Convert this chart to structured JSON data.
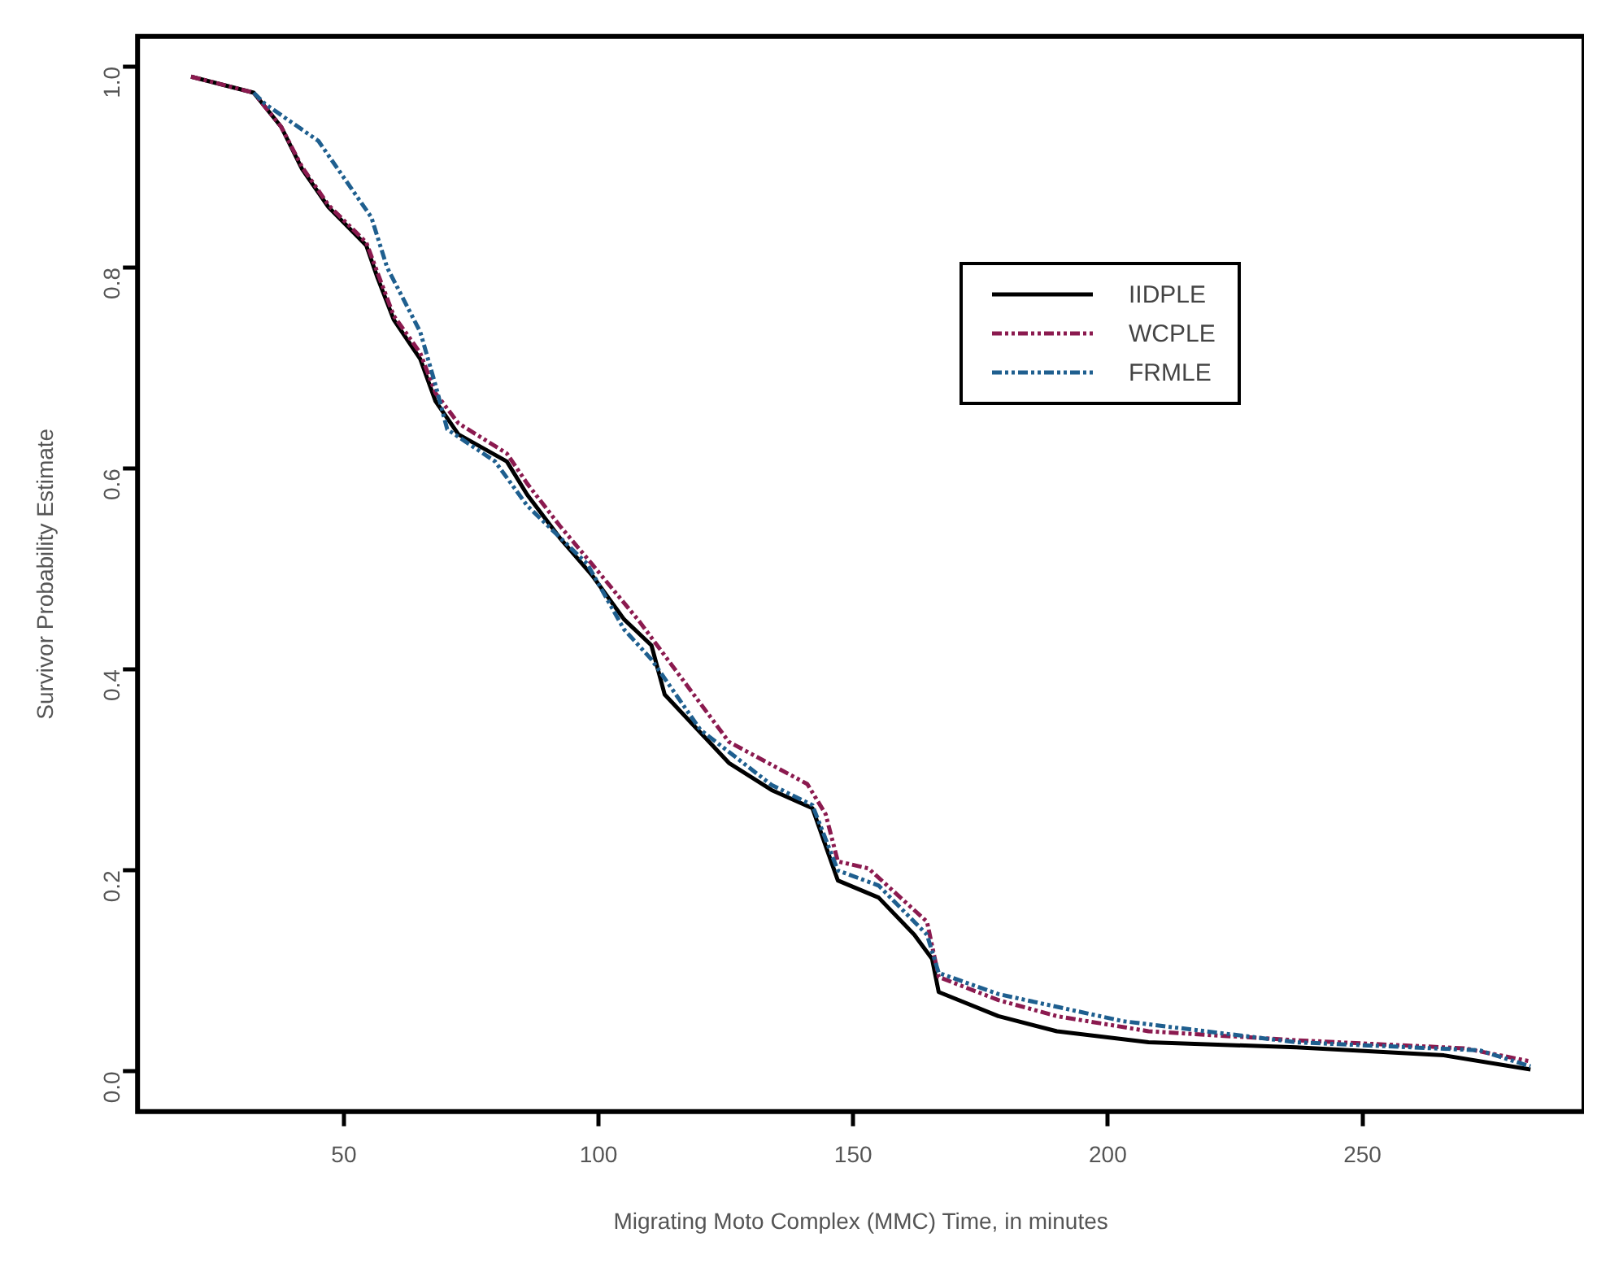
{
  "chart_data": {
    "type": "line",
    "xlabel": "Migrating Moto Complex (MMC) Time, in minutes",
    "ylabel": "Survivor Probability Estimate",
    "xlim": [
      9.5,
      293.5
    ],
    "xticks": [
      50,
      100,
      150,
      200,
      250
    ],
    "ylim": [
      -0.04,
      1.03
    ],
    "yticks": [
      {
        "value": 0,
        "label": "0.0"
      },
      0.2,
      0.4,
      0.6,
      0.8,
      {
        "value": 1,
        "label": "1.0"
      }
    ],
    "grid": false,
    "legend": "top right",
    "marker": "none",
    "series": [
      {
        "name": "IIDPLE",
        "color": "#000000",
        "line_style": "solid",
        "x": [
          20,
          32.3,
          37.7,
          41.8,
          47,
          54.4,
          56.6,
          59.8,
          65,
          68,
          72.5,
          82,
          86,
          92.4,
          98.7,
          105,
          110.4,
          113,
          125.6,
          134,
          142,
          147,
          155,
          162,
          165.5,
          166.8,
          178.5,
          190,
          208,
          237,
          266,
          283
        ],
        "values": [
          0.99,
          0.974,
          0.94,
          0.898,
          0.86,
          0.822,
          0.79,
          0.748,
          0.709,
          0.667,
          0.634,
          0.607,
          0.574,
          0.531,
          0.494,
          0.45,
          0.424,
          0.375,
          0.307,
          0.28,
          0.262,
          0.19,
          0.173,
          0.136,
          0.112,
          0.079,
          0.055,
          0.04,
          0.029,
          0.024,
          0.016,
          0.002
        ]
      },
      {
        "name": "WCPLE",
        "color": "#8b1a4f",
        "line_style": "dashed",
        "x": [
          20,
          32.3,
          37.7,
          41.8,
          47,
          54.4,
          56.6,
          59.8,
          65,
          68,
          72.5,
          82,
          86,
          92.4,
          98.7,
          108,
          125.6,
          141,
          144.6,
          147,
          153,
          164.5,
          166.8,
          178.5,
          190,
          208,
          237,
          270,
          283
        ],
        "values": [
          0.99,
          0.974,
          0.94,
          0.9,
          0.862,
          0.825,
          0.795,
          0.752,
          0.715,
          0.675,
          0.645,
          0.615,
          0.585,
          0.543,
          0.505,
          0.448,
          0.328,
          0.286,
          0.256,
          0.209,
          0.202,
          0.149,
          0.094,
          0.071,
          0.055,
          0.04,
          0.031,
          0.023,
          0.01
        ]
      },
      {
        "name": "FRMLE",
        "color": "#1f5f8f",
        "line_style": "dashed",
        "x": [
          32.3,
          34.5,
          45,
          55.4,
          58.5,
          65,
          68,
          70.3,
          79.7,
          86,
          97.8,
          105,
          110.4,
          120,
          134,
          142,
          147,
          155,
          164.5,
          166.8,
          178.5,
          203,
          237,
          273,
          283
        ],
        "values": [
          0.974,
          0.963,
          0.926,
          0.85,
          0.8,
          0.736,
          0.683,
          0.639,
          0.607,
          0.563,
          0.505,
          0.44,
          0.41,
          0.34,
          0.285,
          0.265,
          0.2,
          0.185,
          0.136,
          0.098,
          0.077,
          0.05,
          0.029,
          0.021,
          0.005
        ]
      }
    ]
  }
}
